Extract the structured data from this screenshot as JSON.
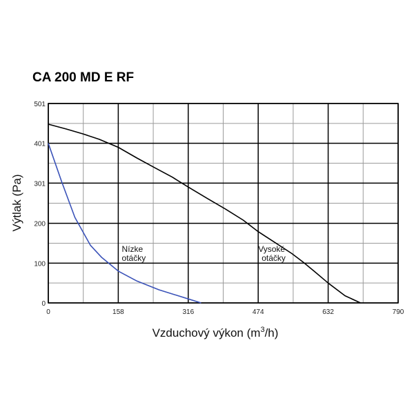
{
  "chart_data": {
    "type": "line",
    "title": "CA 200 MD E RF",
    "xlabel_main": "Vzduchový výkon (m",
    "xlabel_sup": "3",
    "xlabel_end": "/h)",
    "ylabel": "Výtlak (Pa)",
    "xlim": [
      0,
      790
    ],
    "ylim": [
      0,
      501
    ],
    "x_ticks": [
      0,
      158,
      316,
      474,
      632,
      790
    ],
    "y_ticks": [
      0,
      100,
      200,
      301,
      401,
      501
    ],
    "grid": true,
    "series": [
      {
        "name": "Vysoké otáčky",
        "color": "#000000",
        "x": [
          0,
          40,
          80,
          115,
          158,
          200,
          240,
          280,
          316,
          360,
          400,
          440,
          474,
          510,
          550,
          575,
          600,
          632,
          670,
          705
        ],
        "y": [
          449,
          437,
          424,
          411,
          391,
          364,
          340,
          316,
          291,
          262,
          236,
          208,
          179,
          153,
          124,
          103,
          80,
          50,
          18,
          0
        ]
      },
      {
        "name": "Nízke otáčky",
        "color": "#3a52b8",
        "x": [
          0,
          30,
          60,
          95,
          120,
          158,
          200,
          250,
          316,
          345
        ],
        "y": [
          401,
          305,
          215,
          145,
          115,
          80,
          55,
          33,
          10,
          0
        ]
      }
    ],
    "annotations": [
      {
        "lines": [
          "Nízke",
          "otáčky"
        ],
        "x": 166,
        "y": 114
      },
      {
        "lines": [
          "Vysoké",
          "otáčky"
        ],
        "x": 474,
        "y": 114
      }
    ]
  }
}
